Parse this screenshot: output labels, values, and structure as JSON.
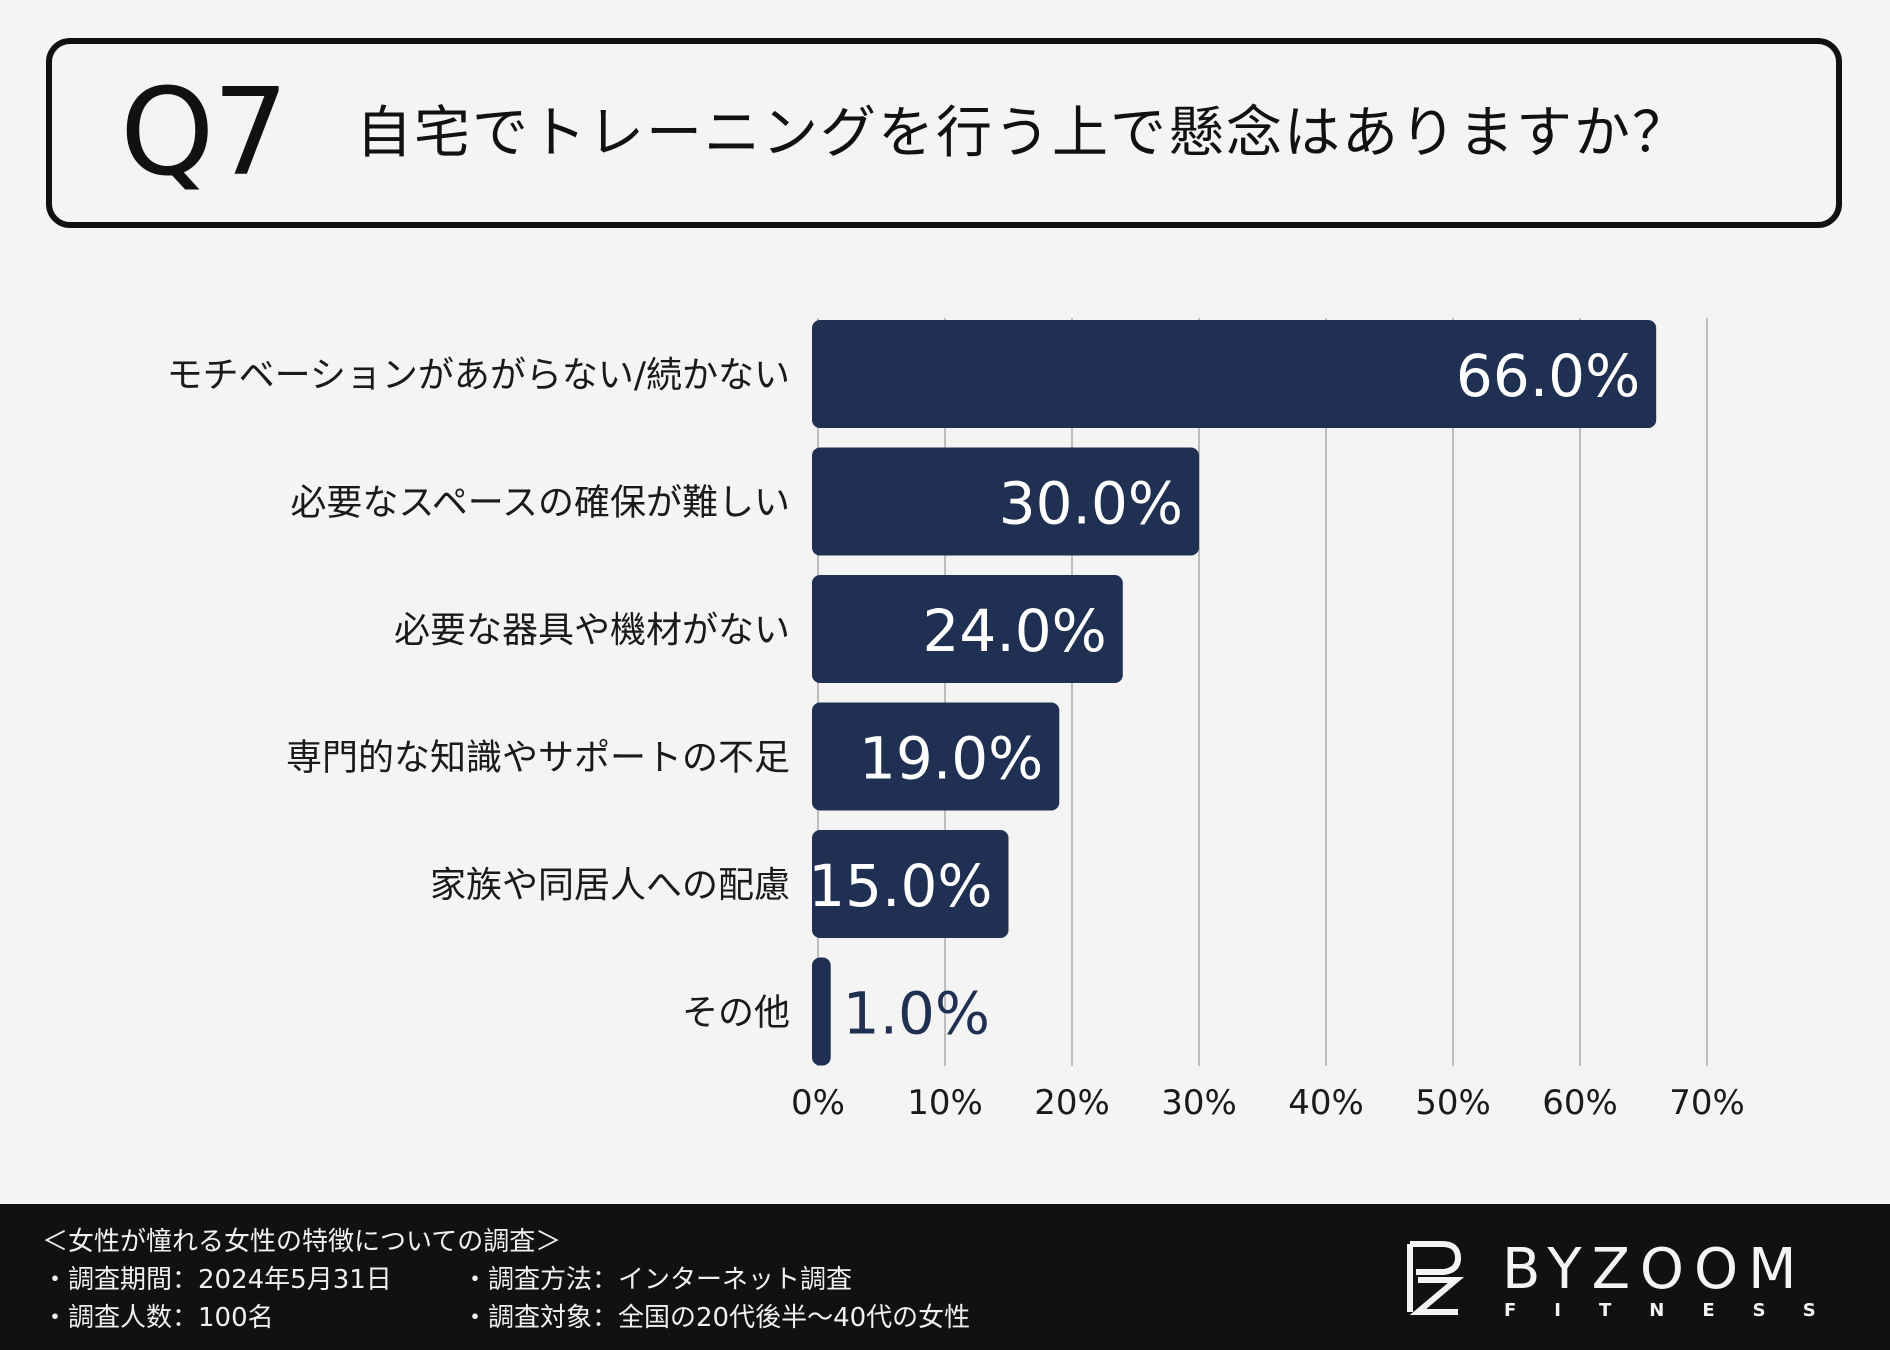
{
  "question": {
    "number": "Q7",
    "text": "自宅でトレーニングを行う上で懸念はありますか？"
  },
  "chart_data": {
    "type": "bar",
    "orientation": "horizontal",
    "categories": [
      "モチベーションがあがらない/続かない",
      "必要なスペースの確保が難しい",
      "必要な器具や機材がない",
      "専門的な知識やサポートの不足",
      "家族や同居人への配慮",
      "その他"
    ],
    "values": [
      66.0,
      30.0,
      24.0,
      19.0,
      15.0,
      1.0
    ],
    "value_labels": [
      "66.0%",
      "30.0%",
      "24.0%",
      "19.0%",
      "15.0%",
      "1.0%"
    ],
    "xlim": [
      0,
      70
    ],
    "ticks": [
      0,
      10,
      20,
      30,
      40,
      50,
      60,
      70
    ],
    "tick_labels": [
      "0%",
      "10%",
      "20%",
      "30%",
      "40%",
      "50%",
      "60%",
      "70%"
    ],
    "grid": "vertical",
    "bar_color": "#1f3052",
    "grid_color": "#bdbdbd"
  },
  "footer": {
    "survey_title": "＜女性が憧れる女性の特徴についての調査＞",
    "period": "・調査期間：2024年5月31日",
    "method": "・調査方法：インターネット調査",
    "count": "・調査人数：100名",
    "target": "・調査対象：全国の20代後半～40代の女性"
  },
  "logo": {
    "name": "BYZOOM",
    "sub": "FITNESS",
    "icon": "bz-monogram-icon"
  }
}
